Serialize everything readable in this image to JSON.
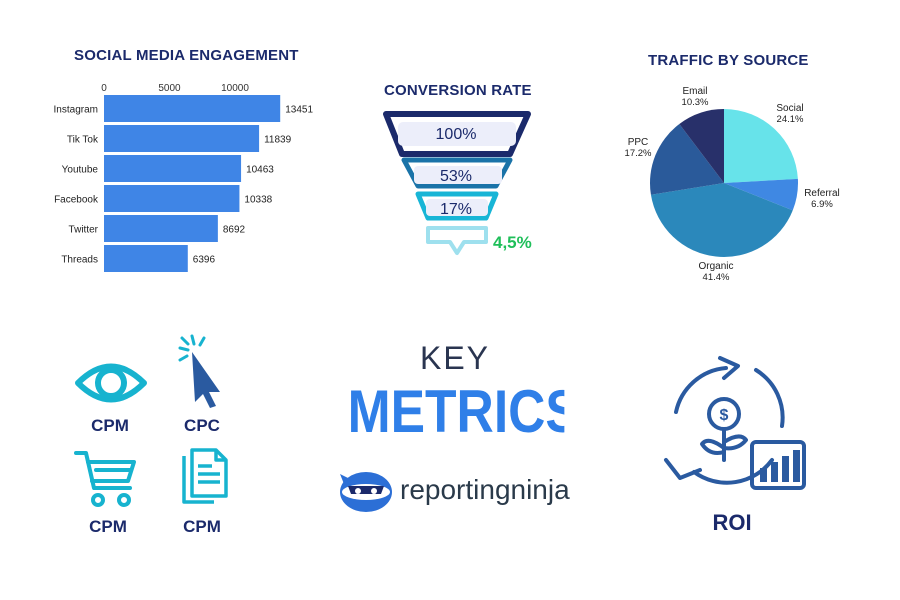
{
  "colors": {
    "title": "#1b2a6b",
    "bar": "#3f85e6",
    "funnel_dark": "#1b2a6b",
    "funnel_teal": "#1a73a8",
    "funnel_cyan": "#18b5d6",
    "funnel_light": "#9ee0ee",
    "green": "#1fbf5a",
    "metrics_blue": "#2f7fe8",
    "ninja_text": "#2a3a4a"
  },
  "engagement": {
    "title": "SOCIAL MEDIA ENGAGEMENT",
    "chart_data": {
      "type": "bar",
      "orientation": "horizontal",
      "categories": [
        "Instagram",
        "Tik Tok",
        "Youtube",
        "Facebook",
        "Twitter",
        "Threads"
      ],
      "values": [
        13451,
        11839,
        10463,
        10338,
        8692,
        6396
      ],
      "xticks": [
        0,
        5000,
        10000
      ],
      "xlim": [
        0,
        20000
      ],
      "grid": false,
      "data_labels": true
    }
  },
  "conversion": {
    "title": "CONVERSION RATE",
    "stages": [
      "100%",
      "53%",
      "17%"
    ],
    "final": "4,5%"
  },
  "traffic": {
    "title": "TRAFFIC BY SOURCE",
    "chart_data": {
      "type": "pie",
      "slices": [
        {
          "label": "Social",
          "value": 24.1,
          "display": "24.1%",
          "color": "#67e3ea"
        },
        {
          "label": "Referral",
          "value": 6.9,
          "display": "6.9%",
          "color": "#3f88e3"
        },
        {
          "label": "Organic",
          "value": 41.4,
          "display": "41.4%",
          "color": "#2b88bb"
        },
        {
          "label": "PPC",
          "value": 17.2,
          "display": "17.2%",
          "color": "#2a5a9a"
        },
        {
          "label": "Email",
          "value": 10.3,
          "display": "10.3%",
          "color": "#28306a"
        }
      ]
    }
  },
  "icons": [
    {
      "name": "eye-icon",
      "label": "CPM"
    },
    {
      "name": "cursor-click-icon",
      "label": "CPC"
    },
    {
      "name": "shopping-cart-icon",
      "label": "CPM"
    },
    {
      "name": "document-icon",
      "label": "CPM"
    }
  ],
  "center": {
    "key": "KEY",
    "metrics": "METRICS",
    "brand_a": "reporting",
    "brand_b": "ninja"
  },
  "roi": {
    "label": "ROI"
  }
}
